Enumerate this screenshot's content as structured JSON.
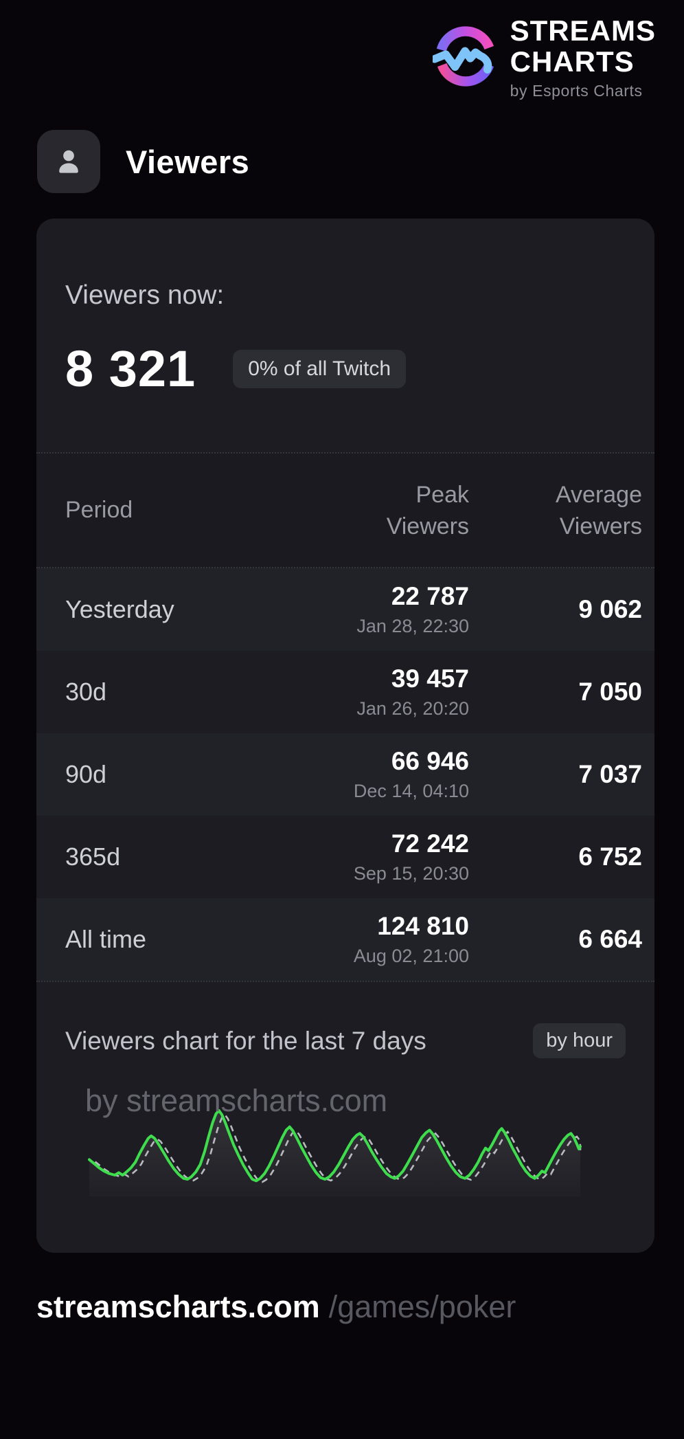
{
  "logo": {
    "line1": "STREAMS",
    "line2": "CHARTS",
    "byline": "by Esports Charts"
  },
  "header": {
    "title": "Viewers"
  },
  "now": {
    "label": "Viewers now:",
    "value": "8 321",
    "badge": "0% of all Twitch"
  },
  "table": {
    "headers": {
      "period": "Period",
      "peak_line1": "Peak",
      "peak_line2": "Viewers",
      "avg_line1": "Average",
      "avg_line2": "Viewers"
    },
    "rows": [
      {
        "period": "Yesterday",
        "peak": "22 787",
        "peak_date": "Jan 28, 22:30",
        "average": "9 062"
      },
      {
        "period": "30d",
        "peak": "39 457",
        "peak_date": "Jan 26, 20:20",
        "average": "7 050"
      },
      {
        "period": "90d",
        "peak": "66 946",
        "peak_date": "Dec 14, 04:10",
        "average": "7 037"
      },
      {
        "period": "365d",
        "peak": "72 242",
        "peak_date": "Sep 15, 20:30",
        "average": "6 752"
      },
      {
        "period": "All time",
        "peak": "124 810",
        "peak_date": "Aug 02, 21:00",
        "average": "6 664"
      }
    ]
  },
  "chart": {
    "title": "Viewers chart for the last 7 days",
    "badge": "by hour",
    "watermark": "by streamscharts.com"
  },
  "chart_data": {
    "type": "line",
    "title": "Viewers chart for the last 7 days",
    "x_unit": "hours over 7 days (one peak per day, no axis labels shown)",
    "y_unit": "relative viewers, 0-100 of weekly peak (no axis labels shown)",
    "grid": false,
    "legend": false,
    "series": [
      {
        "name": "viewers-current",
        "style": "solid",
        "color": "#3fdd4d",
        "points": [
          [
            0,
            40
          ],
          [
            1,
            35
          ],
          [
            2,
            30
          ],
          [
            3,
            26
          ],
          [
            4,
            23
          ],
          [
            5.2,
            21
          ],
          [
            6,
            24
          ],
          [
            6.8,
            21
          ],
          [
            7.6,
            25
          ],
          [
            8.5,
            30
          ],
          [
            9.4,
            37
          ],
          [
            10.3,
            48
          ],
          [
            11.2,
            58
          ],
          [
            12,
            66
          ],
          [
            12.6,
            69
          ],
          [
            13.3,
            66
          ],
          [
            14.2,
            58
          ],
          [
            15.2,
            48
          ],
          [
            16.2,
            38
          ],
          [
            17.2,
            29
          ],
          [
            18.2,
            22
          ],
          [
            19.2,
            17
          ],
          [
            20,
            16
          ],
          [
            20.8,
            19
          ],
          [
            21.7,
            25
          ],
          [
            22.6,
            34
          ],
          [
            23.5,
            50
          ],
          [
            24.3,
            68
          ],
          [
            25.1,
            85
          ],
          [
            25.8,
            96
          ],
          [
            26.4,
            100
          ],
          [
            27,
            95
          ],
          [
            27.7,
            85
          ],
          [
            28.5,
            72
          ],
          [
            29.4,
            58
          ],
          [
            30.4,
            45
          ],
          [
            31.4,
            33
          ],
          [
            32.4,
            23
          ],
          [
            33.2,
            16
          ],
          [
            34,
            14
          ],
          [
            34.8,
            17
          ],
          [
            35.7,
            23
          ],
          [
            36.6,
            32
          ],
          [
            37.5,
            43
          ],
          [
            38.4,
            55
          ],
          [
            39.3,
            67
          ],
          [
            40.1,
            76
          ],
          [
            40.8,
            80
          ],
          [
            41.5,
            75
          ],
          [
            42.3,
            66
          ],
          [
            43.2,
            55
          ],
          [
            44.2,
            44
          ],
          [
            45.2,
            33
          ],
          [
            46.2,
            24
          ],
          [
            47.1,
            18
          ],
          [
            48,
            16
          ],
          [
            48.9,
            19
          ],
          [
            49.8,
            25
          ],
          [
            50.8,
            34
          ],
          [
            51.8,
            45
          ],
          [
            52.8,
            56
          ],
          [
            53.7,
            65
          ],
          [
            54.5,
            70
          ],
          [
            55.1,
            72
          ],
          [
            55.8,
            68
          ],
          [
            56.6,
            60
          ],
          [
            57.5,
            50
          ],
          [
            58.5,
            40
          ],
          [
            59.5,
            31
          ],
          [
            60.5,
            23
          ],
          [
            61.4,
            19
          ],
          [
            62.2,
            17
          ],
          [
            63,
            20
          ],
          [
            63.9,
            26
          ],
          [
            64.8,
            35
          ],
          [
            65.8,
            46
          ],
          [
            66.8,
            57
          ],
          [
            67.7,
            67
          ],
          [
            68.6,
            73
          ],
          [
            69.3,
            76
          ],
          [
            70,
            71
          ],
          [
            70.8,
            63
          ],
          [
            71.7,
            53
          ],
          [
            72.7,
            42
          ],
          [
            73.7,
            32
          ],
          [
            74.7,
            24
          ],
          [
            75.6,
            19
          ],
          [
            76.5,
            17
          ],
          [
            77.4,
            21
          ],
          [
            78.3,
            28
          ],
          [
            79.2,
            37
          ],
          [
            80,
            47
          ],
          [
            80.7,
            54
          ],
          [
            81.3,
            51
          ],
          [
            82,
            58
          ],
          [
            82.8,
            67
          ],
          [
            83.5,
            75
          ],
          [
            84,
            78
          ],
          [
            84.6,
            73
          ],
          [
            85.4,
            64
          ],
          [
            86.2,
            54
          ],
          [
            87.1,
            44
          ],
          [
            88,
            34
          ],
          [
            88.9,
            26
          ],
          [
            89.8,
            20
          ],
          [
            90.7,
            17
          ],
          [
            91.5,
            21
          ],
          [
            92.2,
            26
          ],
          [
            92.8,
            24
          ],
          [
            93.5,
            32
          ],
          [
            94.3,
            41
          ],
          [
            95.1,
            50
          ],
          [
            95.9,
            58
          ],
          [
            96.7,
            65
          ],
          [
            97.5,
            70
          ],
          [
            98.1,
            72
          ],
          [
            98.7,
            67
          ],
          [
            99.3,
            59
          ],
          [
            99.7,
            53
          ],
          [
            100,
            56
          ]
        ]
      },
      {
        "name": "viewers-comparison-dashed",
        "style": "dashed",
        "color": "#b9bac0",
        "offset": {
          "dx": 1.2,
          "v_scale": 0.96,
          "dv": -1
        }
      }
    ]
  },
  "footer": {
    "site": "streamscharts.com",
    "path": "/games/poker"
  },
  "colors": {
    "page_bg": "#07050a",
    "card_bg": "#1c1c22",
    "row_alt_bg": "#212128",
    "badge_bg": "#2d2d34",
    "accent_green": "#3fdd4d",
    "dashed_gray": "#b9bac0",
    "logo_pink": "#f24fc0",
    "logo_purple": "#a355ee",
    "logo_blue": "#7ec4f8"
  }
}
